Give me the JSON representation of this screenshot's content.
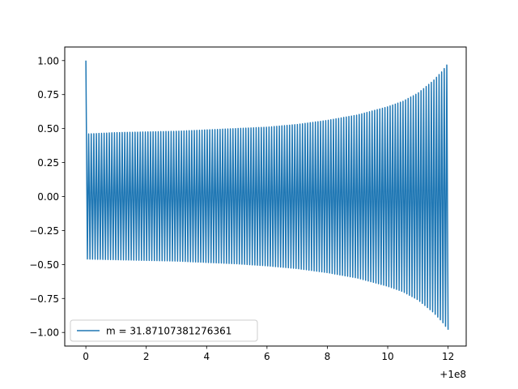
{
  "chart_data": {
    "type": "line",
    "title": "",
    "xlabel": "",
    "ylabel": "",
    "x_offset_label": "+1e8",
    "xlim": [
      -0.7,
      12.6
    ],
    "ylim": [
      -1.1,
      1.1
    ],
    "x_ticks": [
      {
        "value": 0,
        "label": "0"
      },
      {
        "value": 2,
        "label": "2"
      },
      {
        "value": 4,
        "label": "4"
      },
      {
        "value": 6,
        "label": "6"
      },
      {
        "value": 8,
        "label": "8"
      },
      {
        "value": 10,
        "label": "10"
      },
      {
        "value": 12,
        "label": "12"
      }
    ],
    "y_ticks": [
      {
        "value": 1.0,
        "label": "1.00"
      },
      {
        "value": 0.75,
        "label": "0.75"
      },
      {
        "value": 0.5,
        "label": "0.50"
      },
      {
        "value": 0.25,
        "label": "0.25"
      },
      {
        "value": 0.0,
        "label": "0.00"
      },
      {
        "value": -0.25,
        "label": "−0.25"
      },
      {
        "value": -0.5,
        "label": "−0.50"
      },
      {
        "value": -0.75,
        "label": "−0.75"
      },
      {
        "value": -1.0,
        "label": "−1.00"
      }
    ],
    "grid": false,
    "legend_position": "lower-left",
    "series": [
      {
        "name": "m = 31.87107381276361",
        "color": "#1f77b4",
        "x": [
          0,
          0.05,
          1,
          2,
          3,
          4,
          5,
          6,
          7,
          8,
          9,
          10,
          10.5,
          11,
          11.5,
          11.8,
          12
        ],
        "upper_envelope": [
          1.0,
          0.46,
          0.47,
          0.475,
          0.48,
          0.49,
          0.5,
          0.51,
          0.53,
          0.56,
          0.6,
          0.66,
          0.7,
          0.76,
          0.85,
          0.92,
          0.98
        ],
        "lower_envelope": [
          -0.46,
          -0.46,
          -0.465,
          -0.47,
          -0.475,
          -0.485,
          -0.495,
          -0.51,
          -0.53,
          -0.56,
          -0.6,
          -0.66,
          -0.7,
          -0.76,
          -0.85,
          -0.92,
          -0.98
        ],
        "oscillation_count": 140
      }
    ]
  }
}
